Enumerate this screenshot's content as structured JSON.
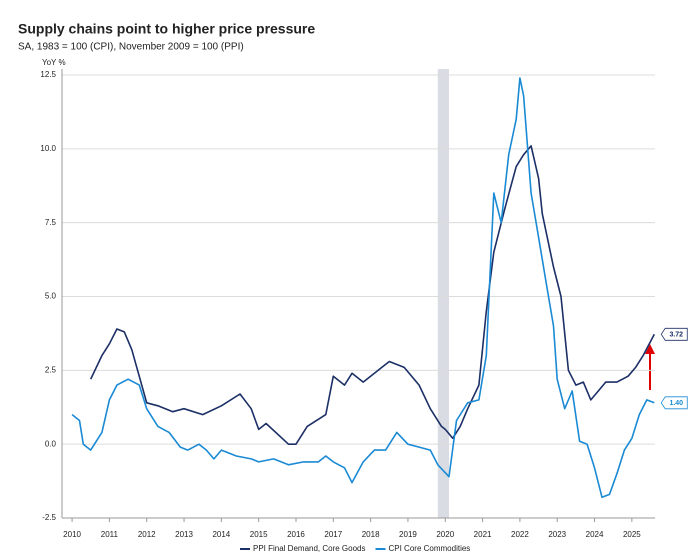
{
  "chart_data": {
    "type": "line",
    "title": "Supply chains point to higher price pressure",
    "subtitle": "SA, 1983 = 100 (CPI), November 2009 = 100 (PPI)",
    "y_label": "YoY %",
    "xlim": [
      2009.73,
      2025.62
    ],
    "xticks": [
      2010,
      2011,
      2012,
      2013,
      2014,
      2015,
      2016,
      2017,
      2018,
      2019,
      2020,
      2021,
      2022,
      2023,
      2024,
      2025
    ],
    "ylim": [
      -2.5,
      12.5
    ],
    "yticks": [
      12.5,
      {
        "value": 10,
        "label": "10.0"
      },
      7.5,
      {
        "value": 5,
        "label": "5.0"
      },
      2.5,
      {
        "value": 0,
        "label": "0.0"
      },
      -2.5
    ],
    "grid": true,
    "shade": [
      2019.8,
      2020.1
    ],
    "series": [
      {
        "name": "PPI Final Demand, Core Goods",
        "color": "#1c2f66",
        "end_label": "3.72",
        "x": [
          2010.5,
          2010.8,
          2011.0,
          2011.2,
          2011.4,
          2011.6,
          2012.0,
          2012.3,
          2012.7,
          2013.0,
          2013.5,
          2014.0,
          2014.5,
          2014.8,
          2015.0,
          2015.2,
          2015.8,
          2016.0,
          2016.3,
          2016.8,
          2017.0,
          2017.3,
          2017.5,
          2017.8,
          2018.3,
          2018.5,
          2018.9,
          2019.3,
          2019.6,
          2019.9,
          2020.0,
          2020.2,
          2020.4,
          2020.6,
          2020.9,
          2021.1,
          2021.3,
          2021.6,
          2021.9,
          2022.1,
          2022.3,
          2022.5,
          2022.6,
          2022.9,
          2023.1,
          2023.3,
          2023.5,
          2023.7,
          2023.9,
          2024.1,
          2024.3,
          2024.6,
          2024.9,
          2025.1,
          2025.3,
          2025.6
        ],
        "values": [
          2.2,
          3.0,
          3.4,
          3.9,
          3.8,
          3.2,
          1.4,
          1.3,
          1.1,
          1.2,
          1.0,
          1.3,
          1.7,
          1.2,
          0.5,
          0.7,
          0.0,
          0.0,
          0.6,
          1.0,
          2.3,
          2.0,
          2.4,
          2.1,
          2.6,
          2.8,
          2.6,
          2.0,
          1.2,
          0.6,
          0.5,
          0.2,
          0.6,
          1.2,
          2.0,
          4.5,
          6.5,
          8.0,
          9.4,
          9.8,
          10.1,
          9.0,
          7.8,
          6.0,
          5.0,
          2.5,
          2.0,
          2.1,
          1.5,
          1.8,
          2.1,
          2.1,
          2.3,
          2.6,
          3.0,
          3.72
        ]
      },
      {
        "name": "CPI Core Commodities",
        "color": "#1a8ad4",
        "end_label": "1.40",
        "x": [
          2010.0,
          2010.2,
          2010.3,
          2010.5,
          2010.8,
          2011.0,
          2011.2,
          2011.5,
          2011.8,
          2012.0,
          2012.3,
          2012.6,
          2012.9,
          2013.1,
          2013.4,
          2013.6,
          2013.8,
          2014.0,
          2014.4,
          2014.8,
          2015.0,
          2015.4,
          2015.8,
          2016.2,
          2016.6,
          2016.8,
          2017.0,
          2017.3,
          2017.5,
          2017.8,
          2018.1,
          2018.4,
          2018.7,
          2019.0,
          2019.3,
          2019.6,
          2019.8,
          2020.1,
          2020.3,
          2020.6,
          2020.9,
          2021.1,
          2021.3,
          2021.5,
          2021.7,
          2021.9,
          2022.0,
          2022.1,
          2022.3,
          2022.5,
          2022.7,
          2022.9,
          2023.0,
          2023.2,
          2023.4,
          2023.6,
          2023.8,
          2024.0,
          2024.2,
          2024.4,
          2024.6,
          2024.8,
          2025.0,
          2025.2,
          2025.4,
          2025.6
        ],
        "values": [
          1.0,
          0.8,
          0.0,
          -0.2,
          0.4,
          1.5,
          2.0,
          2.2,
          2.0,
          1.2,
          0.6,
          0.4,
          -0.1,
          -0.2,
          0.0,
          -0.2,
          -0.5,
          -0.2,
          -0.4,
          -0.5,
          -0.6,
          -0.5,
          -0.7,
          -0.6,
          -0.6,
          -0.4,
          -0.6,
          -0.8,
          -1.3,
          -0.6,
          -0.2,
          -0.2,
          0.4,
          0.0,
          -0.1,
          -0.2,
          -0.7,
          -1.1,
          0.8,
          1.4,
          1.5,
          3.0,
          8.5,
          7.5,
          9.8,
          11.0,
          12.4,
          11.8,
          8.5,
          7.0,
          5.5,
          4.0,
          2.2,
          1.2,
          1.8,
          0.1,
          0.0,
          -0.8,
          -1.8,
          -1.7,
          -1.0,
          -0.2,
          0.2,
          1.0,
          1.5,
          1.4
        ]
      }
    ]
  }
}
